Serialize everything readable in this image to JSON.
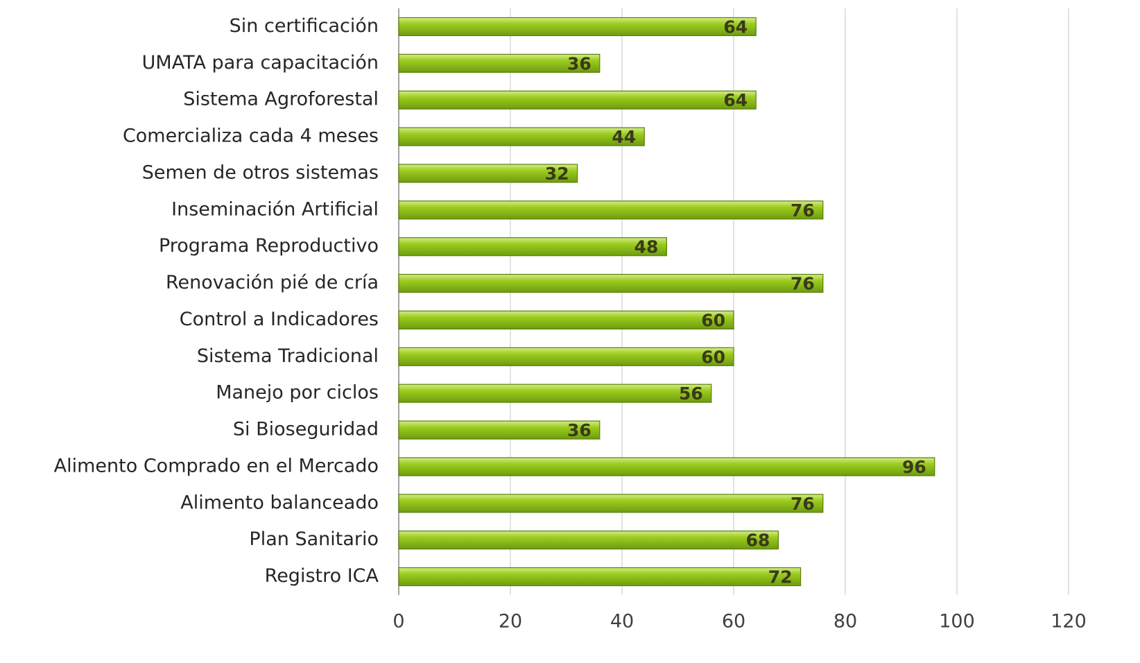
{
  "chart_data": {
    "type": "bar",
    "orientation": "horizontal",
    "categories": [
      "Sin certificación",
      "UMATA para capacitación",
      "Sistema Agroforestal",
      "Comercializa cada 4 meses",
      "Semen de otros sistemas",
      "Inseminación Artificial",
      "Programa Reproductivo",
      "Renovación pié de cría",
      "Control a Indicadores",
      "Sistema Tradicional",
      "Manejo por ciclos",
      "Si Bioseguridad",
      "Alimento Comprado en el Mercado",
      "Alimento balanceado",
      "Plan Sanitario",
      "Registro ICA"
    ],
    "values": [
      64,
      36,
      64,
      44,
      32,
      76,
      48,
      76,
      60,
      60,
      56,
      36,
      96,
      76,
      68,
      72
    ],
    "color": "#8dc21f",
    "xlim": [
      0,
      120
    ],
    "xticks": [
      0,
      20,
      40,
      60,
      80,
      100,
      120
    ],
    "grid": true
  }
}
